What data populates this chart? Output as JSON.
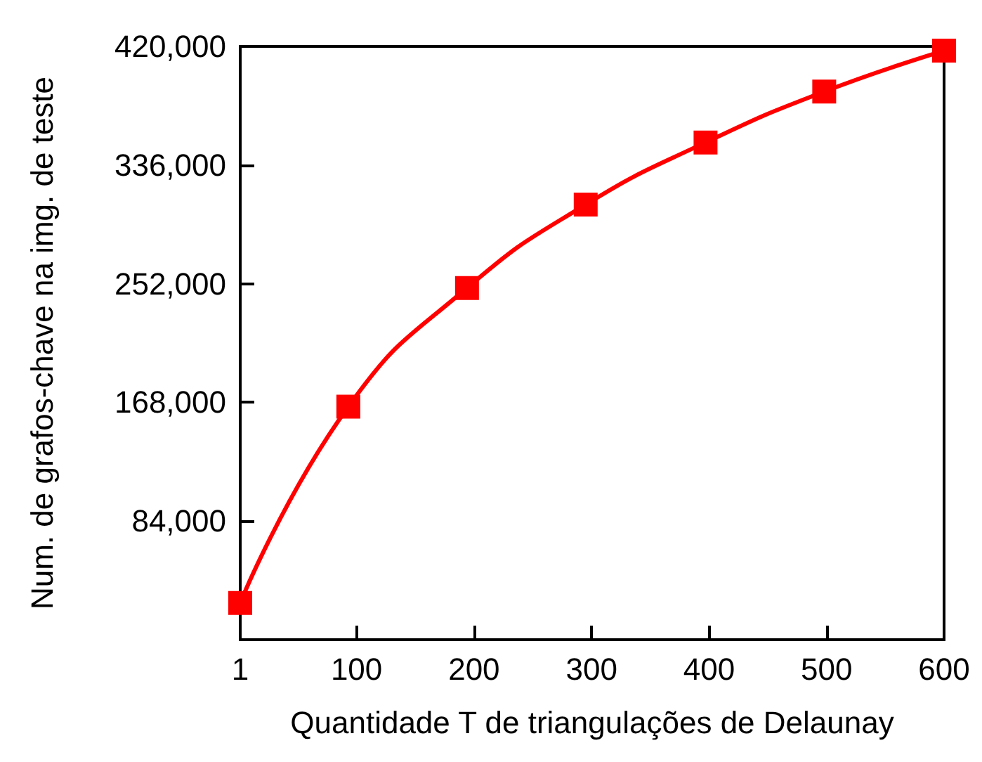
{
  "chart_data": {
    "type": "line",
    "xlabel": "Quantidade T de triangulações de Delaunay",
    "ylabel": "Num. de grafos-chave na img. de teste",
    "x": [
      1,
      93,
      194,
      295,
      397,
      498,
      600
    ],
    "series": [
      {
        "color": "#ff0000",
        "values": [
          26000,
          165000,
          249000,
          308000,
          352000,
          388000,
          417000
        ]
      }
    ],
    "xlim": [
      1,
      600
    ],
    "xticks": [
      1,
      100,
      200,
      300,
      400,
      500,
      600
    ],
    "ylim": [
      0,
      420000
    ],
    "yticks": [
      {
        "value": 0,
        "label": null
      },
      {
        "value": 84000,
        "label": "84,000"
      },
      {
        "value": 168000,
        "label": "168,000"
      },
      {
        "value": 252000,
        "label": "252,000"
      },
      {
        "value": 336000,
        "label": "336,000"
      },
      {
        "value": 420000,
        "label": "420,000"
      }
    ],
    "grid": false,
    "marker": "square",
    "line_style": "solid"
  }
}
